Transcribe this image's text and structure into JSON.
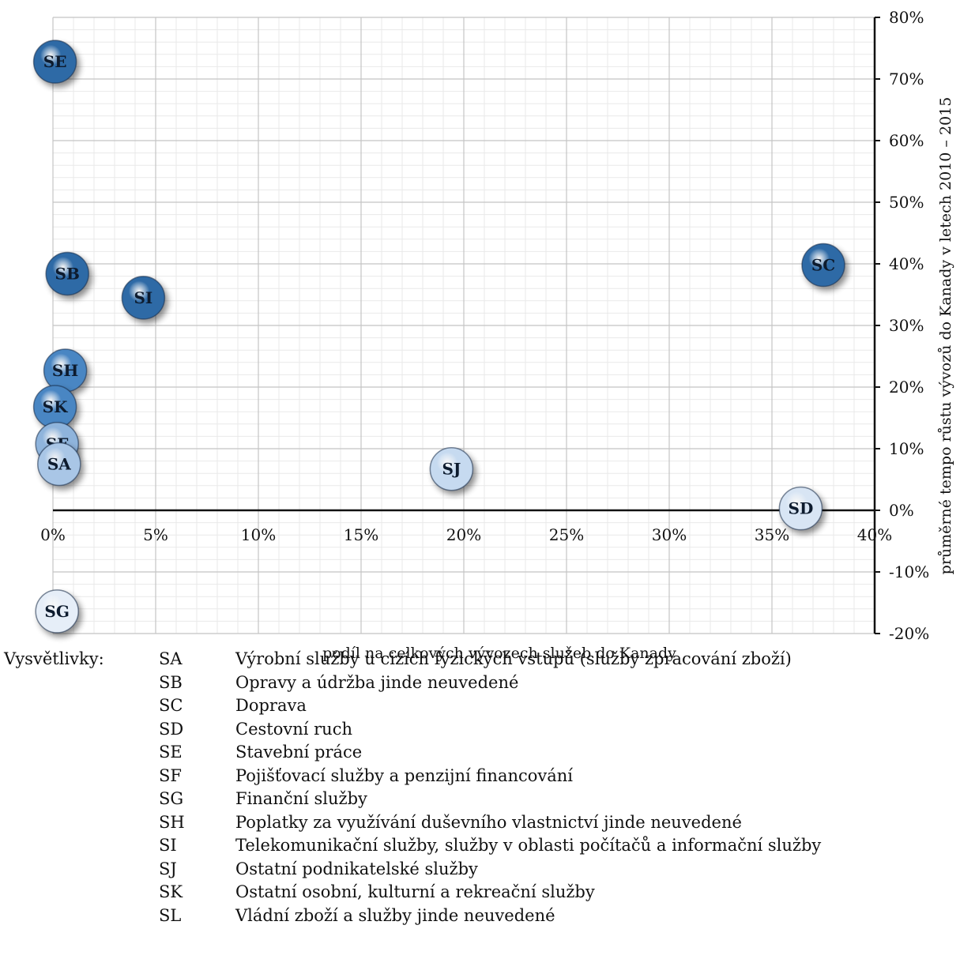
{
  "chart_data": {
    "type": "scatter",
    "xlabel": "podíl na celkových vývozech služeb do Kanady",
    "ylabel": "průměrné tempo růstu vývozů do Kanady v letech 2010 – 2015",
    "xlim": [
      0,
      40
    ],
    "ylim": [
      -20,
      80
    ],
    "x_ticks": [
      0,
      5,
      10,
      15,
      20,
      25,
      30,
      35,
      40
    ],
    "y_ticks": [
      -20,
      -10,
      0,
      10,
      20,
      30,
      40,
      50,
      60,
      70,
      80
    ],
    "x_tick_labels": [
      "0%",
      "5%",
      "10%",
      "15%",
      "20%",
      "25%",
      "30%",
      "35%",
      "40%"
    ],
    "y_tick_labels": [
      "-20%",
      "-10%",
      "0%",
      "10%",
      "20%",
      "30%",
      "40%",
      "50%",
      "60%",
      "70%",
      "80%"
    ],
    "grid": true,
    "points": [
      {
        "label": "SE",
        "x": 0.1,
        "y": 72.8,
        "color": "#2e6aa6"
      },
      {
        "label": "SB",
        "x": 0.7,
        "y": 38.4,
        "color": "#2e6aa6"
      },
      {
        "label": "SI",
        "x": 4.4,
        "y": 34.5,
        "color": "#2e6aa6"
      },
      {
        "label": "SC",
        "x": 37.5,
        "y": 39.8,
        "color": "#2e6aa6"
      },
      {
        "label": "SH",
        "x": 0.6,
        "y": 22.7,
        "color": "#4a86c3"
      },
      {
        "label": "SK",
        "x": 0.1,
        "y": 16.8,
        "color": "#4a86c3"
      },
      {
        "label": "SF",
        "x": 0.2,
        "y": 10.8,
        "color": "#8fb4dc"
      },
      {
        "label": "SA",
        "x": 0.3,
        "y": 7.5,
        "color": "#a9c6e6"
      },
      {
        "label": "SJ",
        "x": 19.4,
        "y": 6.7,
        "color": "#c6daf0"
      },
      {
        "label": "SD",
        "x": 36.4,
        "y": 0.3,
        "color": "#d8e5f4"
      },
      {
        "label": "SG",
        "x": 0.2,
        "y": -16.4,
        "color": "#e6eef8"
      }
    ]
  },
  "legend": {
    "heading": "Vysvětlivky:",
    "items": [
      {
        "code": "SA",
        "text": "Výrobní služby u cizích fyzických vstupů (služby zpracování zboží)"
      },
      {
        "code": "SB",
        "text": "Opravy a údržba jinde neuvedené"
      },
      {
        "code": "SC",
        "text": "Doprava"
      },
      {
        "code": "SD",
        "text": "Cestovní ruch"
      },
      {
        "code": "SE",
        "text": "Stavební práce"
      },
      {
        "code": "SF",
        "text": "Pojišťovací služby a penzijní financování"
      },
      {
        "code": "SG",
        "text": "Finanční služby"
      },
      {
        "code": "SH",
        "text": "Poplatky za využívání duševního vlastnictví jinde neuvedené"
      },
      {
        "code": "SI",
        "text": "Telekomunikační služby, služby v oblasti počítačů a informační služby"
      },
      {
        "code": "SJ",
        "text": "Ostatní podnikatelské služby"
      },
      {
        "code": "SK",
        "text": "Ostatní osobní, kulturní a rekreační služby"
      },
      {
        "code": "SL",
        "text": "Vládní zboží a služby jinde neuvedené"
      }
    ]
  }
}
